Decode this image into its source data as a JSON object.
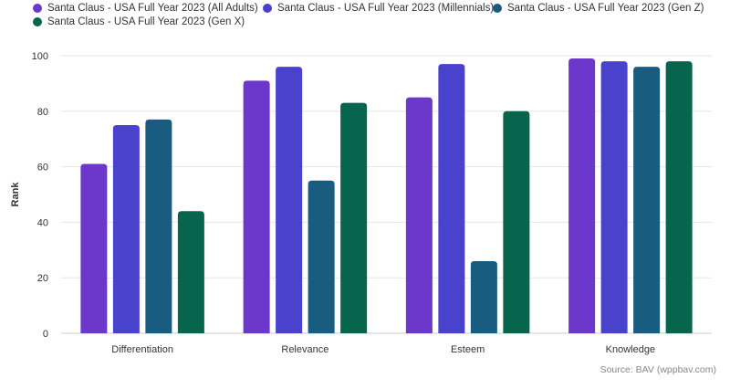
{
  "chart_data": {
    "type": "bar",
    "title": "",
    "xlabel": "",
    "ylabel": "Rank",
    "ylim": [
      0,
      100
    ],
    "yticks": [
      0,
      20,
      40,
      60,
      80,
      100
    ],
    "grid": true,
    "legend_position": "top-left",
    "categories": [
      "Differentiation",
      "Relevance",
      "Esteem",
      "Knowledge"
    ],
    "series": [
      {
        "name": "Santa Claus - USA Full Year 2023 (All Adults)",
        "color": "#6c38cc",
        "values": [
          61,
          91,
          85,
          99
        ]
      },
      {
        "name": "Santa Claus - USA Full Year 2023 (Millennials)",
        "color": "#4842cc",
        "values": [
          75,
          96,
          97,
          98
        ]
      },
      {
        "name": "Santa Claus - USA Full Year 2023 (Gen Z)",
        "color": "#185c80",
        "values": [
          77,
          55,
          26,
          96
        ]
      },
      {
        "name": "Santa Claus - USA Full Year 2023 (Gen X)",
        "color": "#07654e",
        "values": [
          44,
          83,
          80,
          98
        ]
      }
    ]
  },
  "source": "Source: BAV (wppbav.com)"
}
